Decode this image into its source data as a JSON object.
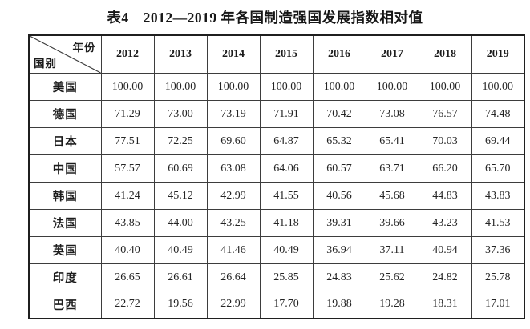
{
  "title": "表4　2012—2019 年各国制造强国发展指数相对值",
  "chart_data": {
    "type": "table",
    "corner": {
      "top_right": "年份",
      "bottom_left": "国别"
    },
    "columns": [
      "2012",
      "2013",
      "2014",
      "2015",
      "2016",
      "2017",
      "2018",
      "2019"
    ],
    "rows": [
      {
        "country": "美国",
        "values": [
          "100.00",
          "100.00",
          "100.00",
          "100.00",
          "100.00",
          "100.00",
          "100.00",
          "100.00"
        ]
      },
      {
        "country": "德国",
        "values": [
          "71.29",
          "73.00",
          "73.19",
          "71.91",
          "70.42",
          "73.08",
          "76.57",
          "74.48"
        ]
      },
      {
        "country": "日本",
        "values": [
          "77.51",
          "72.25",
          "69.60",
          "64.87",
          "65.32",
          "65.41",
          "70.03",
          "69.44"
        ]
      },
      {
        "country": "中国",
        "values": [
          "57.57",
          "60.69",
          "63.08",
          "64.06",
          "60.57",
          "63.71",
          "66.20",
          "65.70"
        ]
      },
      {
        "country": "韩国",
        "values": [
          "41.24",
          "45.12",
          "42.99",
          "41.55",
          "40.56",
          "45.68",
          "44.83",
          "43.83"
        ]
      },
      {
        "country": "法国",
        "values": [
          "43.85",
          "44.00",
          "43.25",
          "41.18",
          "39.31",
          "39.66",
          "43.23",
          "41.53"
        ]
      },
      {
        "country": "英国",
        "values": [
          "40.40",
          "40.49",
          "41.46",
          "40.49",
          "36.94",
          "37.11",
          "40.94",
          "37.36"
        ]
      },
      {
        "country": "印度",
        "values": [
          "26.65",
          "26.61",
          "26.64",
          "25.85",
          "24.83",
          "25.62",
          "24.82",
          "25.78"
        ]
      },
      {
        "country": "巴西",
        "values": [
          "22.72",
          "19.56",
          "22.99",
          "17.70",
          "19.88",
          "19.28",
          "18.31",
          "17.01"
        ]
      }
    ]
  }
}
